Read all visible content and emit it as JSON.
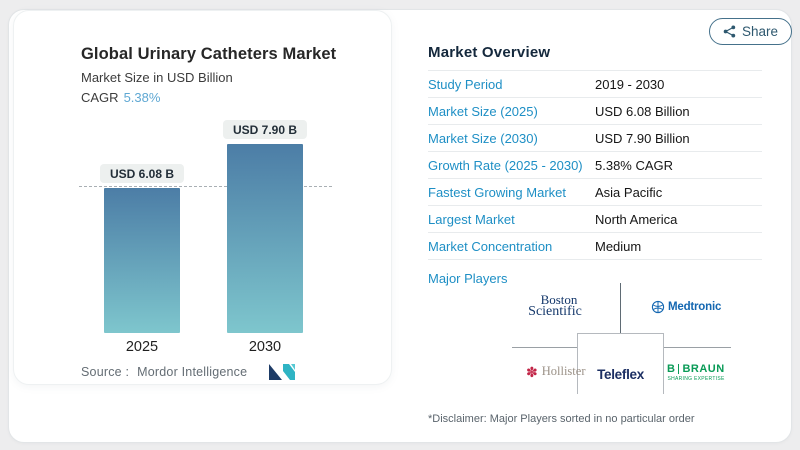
{
  "share_button": {
    "label": "Share",
    "icon": "share-icon"
  },
  "chart_panel": {
    "title": "Global Urinary Catheters Market",
    "subtitle": "Market Size in USD Billion",
    "cagr_label": "CAGR",
    "cagr_value": "5.38%",
    "source_label": "Source :",
    "source_name": "Mordor Intelligence",
    "logo": "mordor-intelligence-logo"
  },
  "chart_data": {
    "type": "bar",
    "categories": [
      "2025",
      "2030"
    ],
    "values": [
      6.08,
      7.9
    ],
    "bar_labels": [
      "USD 6.08 B",
      "USD 7.90 B"
    ],
    "unit": "USD Billion",
    "title": "Global Urinary Catheters Market",
    "ylabel": "Market Size in USD Billion",
    "cagr": "5.38%",
    "reference_line_value": 6.08,
    "bar_color_top": "#4c7da6",
    "bar_color_bottom": "#7ec6cd",
    "grid": false,
    "legend": false
  },
  "overview": {
    "title": "Market Overview",
    "rows": [
      {
        "label": "Study Period",
        "value": "2019 - 2030"
      },
      {
        "label": "Market Size (2025)",
        "value": "USD 6.08 Billion"
      },
      {
        "label": "Market Size (2030)",
        "value": "USD 7.90 Billion"
      },
      {
        "label": "Growth Rate (2025 - 2030)",
        "value": "5.38% CAGR"
      },
      {
        "label": "Fastest Growing Market",
        "value": "Asia Pacific"
      },
      {
        "label": "Largest Market",
        "value": "North America"
      },
      {
        "label": "Market Concentration",
        "value": "Medium"
      }
    ],
    "major_players_label": "Major Players",
    "disclaimer": "*Disclaimer: Major Players sorted in no particular order"
  },
  "players": {
    "boston_line1": "Boston",
    "boston_line2": "Scientific",
    "medtronic": "Medtronic",
    "hollister": "Hollister",
    "teleflex": "Teleflex",
    "braun_b": "B",
    "braun_name": "BRAUN",
    "braun_tagline": "SHARING EXPERTISE"
  },
  "colors": {
    "label_blue": "#1e8fc5",
    "cagr_blue": "#5fa8d3",
    "header_navy": "#14283c",
    "share_slate": "#2e586f",
    "medtronic_blue": "#1467b1",
    "boston_navy": "#15386b",
    "hollister_red": "#c22547",
    "teleflex_navy": "#1c2f63",
    "braun_green": "#0a9b57",
    "mordor_navy": "#1d3b66",
    "mordor_teal": "#2fb4c4"
  }
}
